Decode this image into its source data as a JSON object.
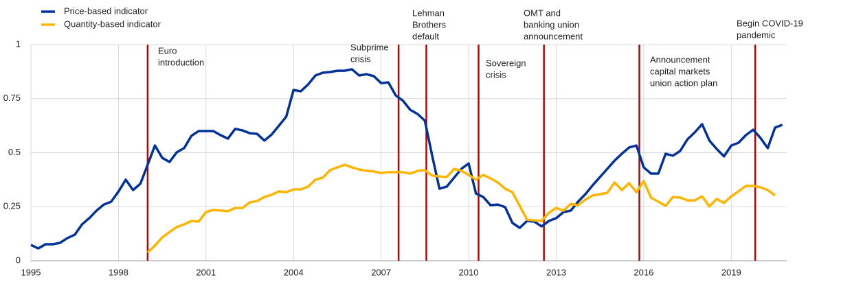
{
  "chart_data": {
    "type": "line",
    "x": [
      1995,
      1995.25,
      1995.5,
      1995.75,
      1996,
      1996.25,
      1996.5,
      1996.75,
      1997,
      1997.25,
      1997.5,
      1997.75,
      1998,
      1998.25,
      1998.5,
      1998.75,
      1999,
      1999.25,
      1999.5,
      1999.75,
      2000,
      2000.25,
      2000.5,
      2000.75,
      2001,
      2001.25,
      2001.5,
      2001.75,
      2002,
      2002.25,
      2002.5,
      2002.75,
      2003,
      2003.25,
      2003.5,
      2003.75,
      2004,
      2004.25,
      2004.5,
      2004.75,
      2005,
      2005.25,
      2005.5,
      2005.75,
      2006,
      2006.25,
      2006.5,
      2006.75,
      2007,
      2007.25,
      2007.5,
      2007.75,
      2008,
      2008.25,
      2008.5,
      2008.75,
      2009,
      2009.25,
      2009.5,
      2009.75,
      2010,
      2010.25,
      2010.5,
      2010.75,
      2011,
      2011.25,
      2011.5,
      2011.75,
      2012,
      2012.25,
      2012.5,
      2012.75,
      2013,
      2013.25,
      2013.5,
      2013.75,
      2014,
      2014.25,
      2014.5,
      2014.75,
      2015,
      2015.25,
      2015.5,
      2015.75,
      2016,
      2016.25,
      2016.5,
      2016.75,
      2017,
      2017.25,
      2017.5,
      2017.75,
      2018,
      2018.25,
      2018.5,
      2018.75,
      2019,
      2019.25,
      2019.5,
      2019.75,
      2020,
      2020.25,
      2020.5,
      2020.75
    ],
    "series": [
      {
        "name": "Price-based indicator",
        "color": "#003299",
        "values": [
          0.073,
          0.057,
          0.076,
          0.076,
          0.083,
          0.105,
          0.12,
          0.168,
          0.197,
          0.232,
          0.26,
          0.273,
          0.32,
          0.375,
          0.327,
          0.356,
          0.444,
          0.533,
          0.476,
          0.457,
          0.502,
          0.521,
          0.578,
          0.6,
          0.6,
          0.6,
          0.581,
          0.565,
          0.61,
          0.603,
          0.59,
          0.587,
          0.556,
          0.584,
          0.625,
          0.667,
          0.79,
          0.784,
          0.816,
          0.857,
          0.87,
          0.873,
          0.879,
          0.879,
          0.886,
          0.857,
          0.863,
          0.854,
          0.822,
          0.825,
          0.765,
          0.74,
          0.698,
          0.679,
          0.648,
          0.486,
          0.333,
          0.343,
          0.384,
          0.425,
          0.45,
          0.311,
          0.295,
          0.257,
          0.26,
          0.248,
          0.175,
          0.152,
          0.184,
          0.181,
          0.159,
          0.184,
          0.197,
          0.225,
          0.232,
          0.273,
          0.308,
          0.349,
          0.387,
          0.425,
          0.463,
          0.495,
          0.524,
          0.533,
          0.432,
          0.403,
          0.403,
          0.495,
          0.486,
          0.508,
          0.562,
          0.594,
          0.632,
          0.556,
          0.517,
          0.483,
          0.533,
          0.546,
          0.581,
          0.606,
          0.568,
          0.521,
          0.616,
          0.629
        ]
      },
      {
        "name": "Quantity-based indicator",
        "color": "#ffb400",
        "values": [
          null,
          null,
          null,
          null,
          null,
          null,
          null,
          null,
          null,
          null,
          null,
          null,
          null,
          null,
          null,
          null,
          0.038,
          0.07,
          0.108,
          0.133,
          0.156,
          0.168,
          0.184,
          0.181,
          0.225,
          0.235,
          0.232,
          0.229,
          0.244,
          0.244,
          0.27,
          0.276,
          0.295,
          0.305,
          0.321,
          0.317,
          0.33,
          0.33,
          0.343,
          0.375,
          0.384,
          0.419,
          0.432,
          0.444,
          0.432,
          0.422,
          0.416,
          0.413,
          0.406,
          0.41,
          0.41,
          0.41,
          0.403,
          0.416,
          0.419,
          0.394,
          0.39,
          0.387,
          0.425,
          0.416,
          0.397,
          0.375,
          0.397,
          0.381,
          0.362,
          0.333,
          0.317,
          0.254,
          0.19,
          0.187,
          0.184,
          0.222,
          0.244,
          0.232,
          0.263,
          0.257,
          0.283,
          0.302,
          0.308,
          0.314,
          0.362,
          0.327,
          0.359,
          0.317,
          0.368,
          0.292,
          0.273,
          0.254,
          0.295,
          0.292,
          0.279,
          0.279,
          0.298,
          0.251,
          0.286,
          0.267,
          0.298,
          0.321,
          0.346,
          0.346,
          0.34,
          0.327,
          0.302,
          null
        ]
      }
    ],
    "events": [
      {
        "x": 1999.0,
        "label": [
          "Euro",
          "introduction"
        ]
      },
      {
        "x": 2007.6,
        "label": [
          "Subprime",
          "crisis"
        ]
      },
      {
        "x": 2008.55,
        "label": [
          "Lehman",
          "Brothers",
          "default"
        ]
      },
      {
        "x": 2010.34,
        "label": [
          "Sovereign",
          "crisis"
        ]
      },
      {
        "x": 2012.58,
        "label": [
          "OMT and",
          "banking union",
          "announcement"
        ]
      },
      {
        "x": 2015.85,
        "label": [
          "Announcement",
          "capital markets",
          "union action plan"
        ]
      },
      {
        "x": 2019.82,
        "label": [
          "Begin COVID-19",
          "pandemic"
        ]
      }
    ],
    "event_color": "#c00000",
    "xlim": [
      1995,
      2020.9
    ],
    "xticks": [
      1995,
      1998,
      2001,
      2004,
      2007,
      2010,
      2013,
      2016,
      2019
    ],
    "ylim": [
      0,
      1
    ],
    "yticks": [
      0,
      0.25,
      0.5,
      0.75,
      1
    ],
    "grid": true
  }
}
